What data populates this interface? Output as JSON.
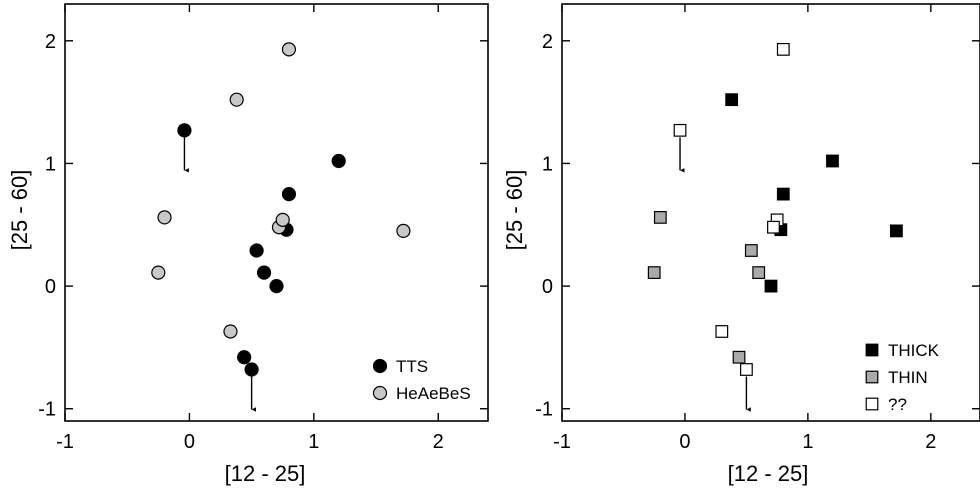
{
  "chart_data": [
    {
      "type": "scatter",
      "title": "",
      "xlabel": "[12 - 25]",
      "ylabel": "[25 - 60]",
      "xlim": [
        -1,
        2.4
      ],
      "ylim": [
        -1.1,
        2.3
      ],
      "xticks": [
        -1,
        0,
        1,
        2
      ],
      "yticks": [
        -1,
        0,
        1,
        2
      ],
      "xtick_labels": [
        "-1",
        "0",
        "1",
        "2"
      ],
      "ytick_labels": [
        "-1",
        "0",
        "1",
        "2"
      ],
      "grid": false,
      "legend_position": "bottom-right",
      "marker": "circle",
      "series": [
        {
          "name": "TTS",
          "fill": "#000000",
          "points": [
            {
              "x": -0.04,
              "y": 1.27,
              "upper_limit": true
            },
            {
              "x": 1.2,
              "y": 1.02
            },
            {
              "x": 0.8,
              "y": 0.75
            },
            {
              "x": 0.78,
              "y": 0.46
            },
            {
              "x": 0.54,
              "y": 0.29
            },
            {
              "x": 0.6,
              "y": 0.11
            },
            {
              "x": 0.7,
              "y": 0.0
            },
            {
              "x": 0.44,
              "y": -0.58
            },
            {
              "x": 0.5,
              "y": -0.68,
              "upper_limit": true
            }
          ]
        },
        {
          "name": "HeAeBeS",
          "fill": "#c8c8c8",
          "points": [
            {
              "x": 0.8,
              "y": 1.93
            },
            {
              "x": 0.38,
              "y": 1.52
            },
            {
              "x": -0.2,
              "y": 0.56
            },
            {
              "x": -0.25,
              "y": 0.11
            },
            {
              "x": 0.72,
              "y": 0.48
            },
            {
              "x": 0.75,
              "y": 0.54
            },
            {
              "x": 1.72,
              "y": 0.45
            },
            {
              "x": 0.33,
              "y": -0.37
            }
          ]
        }
      ]
    },
    {
      "type": "scatter",
      "title": "",
      "xlabel": "[12 - 25]",
      "ylabel": "[25 - 60]",
      "xlim": [
        -1,
        2.4
      ],
      "ylim": [
        -1.1,
        2.3
      ],
      "xticks": [
        -1,
        0,
        1,
        2
      ],
      "yticks": [
        -1,
        0,
        1,
        2
      ],
      "xtick_labels": [
        "-1",
        "0",
        "1",
        "2"
      ],
      "ytick_labels": [
        "-1",
        "0",
        "1",
        "2"
      ],
      "grid": false,
      "legend_position": "bottom-right",
      "marker": "square",
      "series": [
        {
          "name": "THICK",
          "fill": "#000000",
          "points": [
            {
              "x": 0.38,
              "y": 1.52
            },
            {
              "x": 1.2,
              "y": 1.02
            },
            {
              "x": 0.8,
              "y": 0.75
            },
            {
              "x": 0.78,
              "y": 0.46
            },
            {
              "x": 1.72,
              "y": 0.45
            },
            {
              "x": 0.7,
              "y": 0.0
            }
          ]
        },
        {
          "name": "THIN",
          "fill": "#aaaaaa",
          "points": [
            {
              "x": -0.2,
              "y": 0.56
            },
            {
              "x": 0.54,
              "y": 0.29
            },
            {
              "x": -0.25,
              "y": 0.11
            },
            {
              "x": 0.6,
              "y": 0.11
            },
            {
              "x": 0.44,
              "y": -0.58
            }
          ]
        },
        {
          "name": "??",
          "fill": "#ffffff",
          "points": [
            {
              "x": 0.8,
              "y": 1.93
            },
            {
              "x": -0.04,
              "y": 1.27,
              "upper_limit": true
            },
            {
              "x": 0.75,
              "y": 0.54
            },
            {
              "x": 0.72,
              "y": 0.48
            },
            {
              "x": 0.3,
              "y": -0.37
            },
            {
              "x": 0.5,
              "y": -0.68,
              "upper_limit": true
            }
          ]
        }
      ]
    }
  ]
}
